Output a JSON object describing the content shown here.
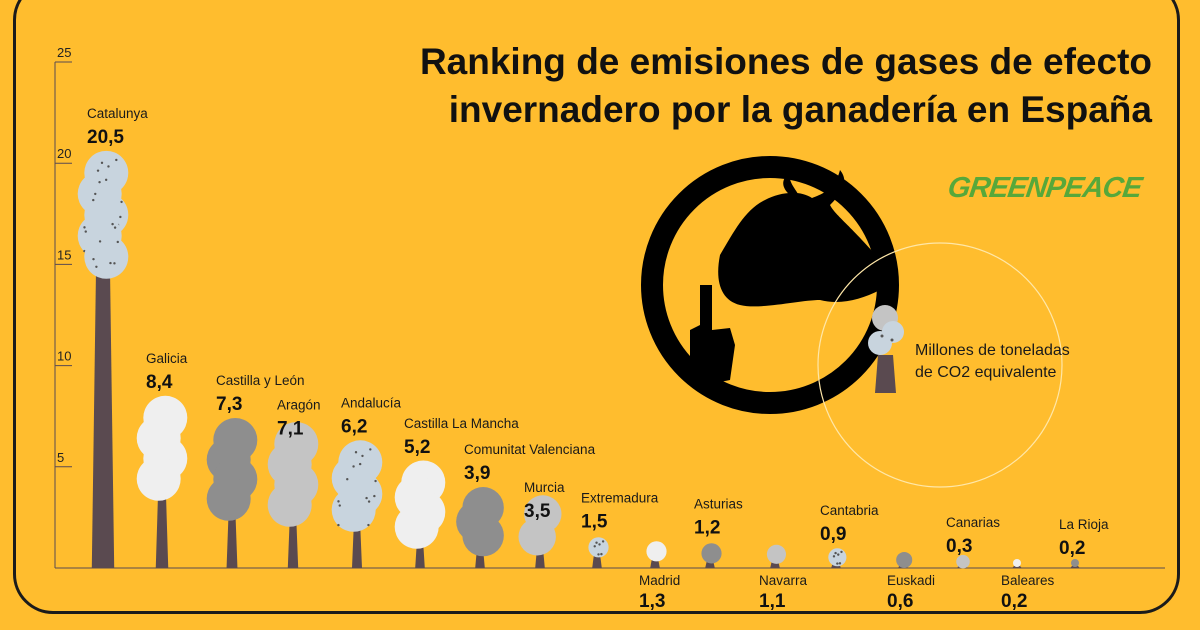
{
  "title_line1": "Ranking de emisiones de gases de efecto",
  "title_line2": "invernadero por la ganadería en España",
  "logo_text": "GREENPEACE",
  "legend_text_line1": "Millones de toneladas",
  "legend_text_line2": "de CO2 equivalente",
  "colors": {
    "background": "#ffbd2e",
    "chimney": "#5a4a50",
    "brand_green": "#57a83a"
  },
  "chart_data": {
    "type": "bar",
    "title": "Ranking de emisiones de gases de efecto invernadero por la ganadería en España",
    "ylabel": "Millones de toneladas de CO2 equivalente",
    "ylim": [
      0,
      25
    ],
    "yticks": [
      "5",
      "10",
      "15",
      "20",
      "25"
    ],
    "grid": false,
    "categories": [
      "Catalunya",
      "Galicia",
      "Castilla y León",
      "Aragón",
      "Andalucía",
      "Castilla La Mancha",
      "Comunitat Valenciana",
      "Murcia",
      "Extremadura",
      "Madrid",
      "Asturias",
      "Navarra",
      "Cantabria",
      "Euskadi",
      "Canarias",
      "Baleares",
      "La Rioja"
    ],
    "value_labels": [
      "20,5",
      "8,4",
      "7,3",
      "7,1",
      "6,2",
      "5,2",
      "3,9",
      "3,5",
      "1,5",
      "1,3",
      "1,2",
      "1,1",
      "0,9",
      "0,6",
      "0,3",
      "0,2",
      "0,2"
    ],
    "values": [
      20.5,
      8.4,
      7.3,
      7.1,
      6.2,
      5.2,
      3.9,
      3.5,
      1.5,
      1.3,
      1.2,
      1.1,
      0.9,
      0.6,
      0.3,
      0.2,
      0.2
    ]
  }
}
